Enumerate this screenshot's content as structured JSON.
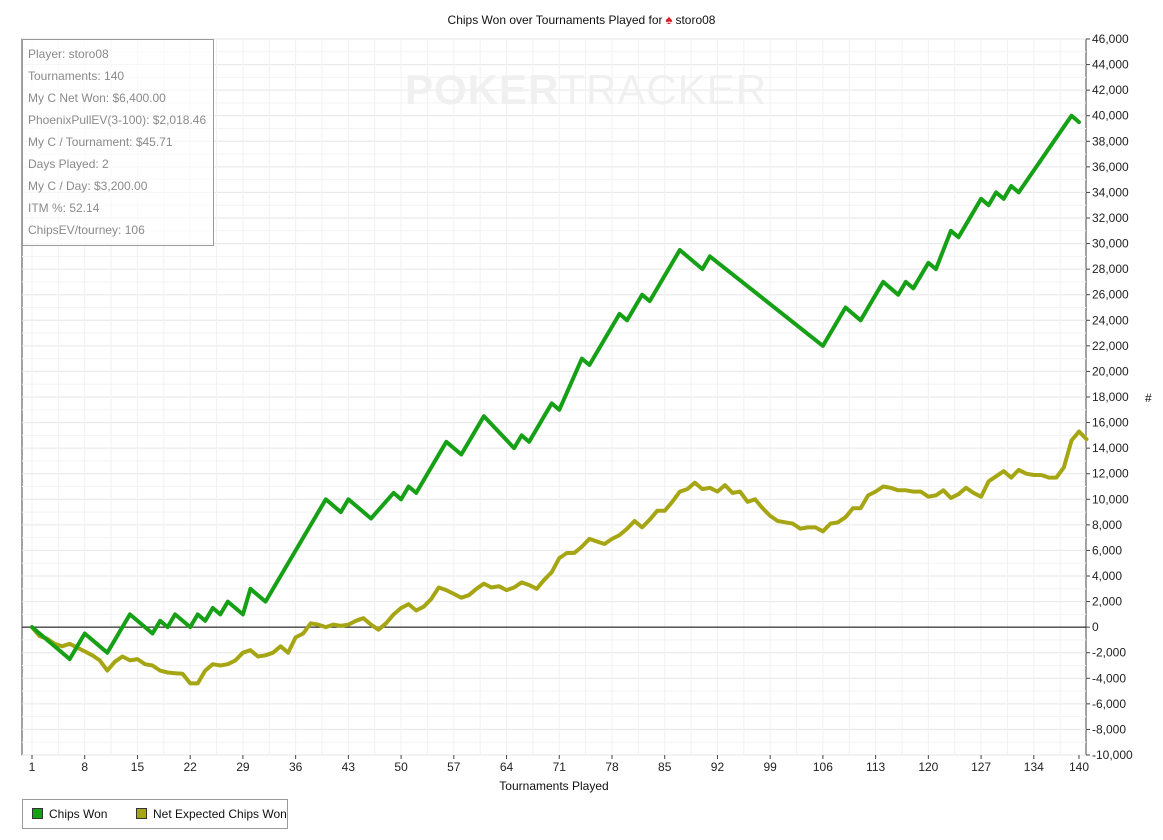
{
  "title": {
    "prefix": "Chips Won over Tournaments Played for",
    "suit_icon": "spade-icon",
    "player": "storo08"
  },
  "watermark": {
    "bold": "POKER",
    "thin": "TRACKER"
  },
  "stats": [
    "Player: storo08",
    "Tournaments: 140",
    "My C Net Won: $6,400.00",
    "PhoenixPullEV(3-100): $2,018.46",
    "My C / Tournament: $45.71",
    "Days Played: 2",
    "My C / Day: $3,200.00",
    "ITM %: 52.14",
    "ChipsEV/tourney: 106"
  ],
  "chart_data": {
    "type": "line",
    "title": "Chips Won over Tournaments Played for storo08",
    "xlabel": "Tournaments Played",
    "ylabel": "#",
    "xlim": [
      1,
      140
    ],
    "ylim": [
      -10000,
      46000
    ],
    "x_ticks": [
      1,
      8,
      15,
      22,
      29,
      36,
      43,
      50,
      57,
      64,
      71,
      78,
      85,
      92,
      99,
      106,
      113,
      120,
      127,
      134,
      140
    ],
    "y_ticks": [
      -10000,
      -8000,
      -6000,
      -4000,
      -2000,
      0,
      2000,
      4000,
      6000,
      8000,
      10000,
      12000,
      14000,
      16000,
      18000,
      20000,
      22000,
      24000,
      26000,
      28000,
      30000,
      32000,
      34000,
      36000,
      38000,
      40000,
      42000,
      44000,
      46000
    ],
    "y_tick_labels": [
      "-10,000",
      "-8,000",
      "-6,000",
      "-4,000",
      "-2,000",
      "0",
      "2,000",
      "4,000",
      "6,000",
      "8,000",
      "10,000",
      "12,000",
      "14,000",
      "16,000",
      "18,000",
      "20,000",
      "22,000",
      "24,000",
      "26,000",
      "28,000",
      "30,000",
      "32,000",
      "34,000",
      "36,000",
      "38,000",
      "40,000",
      "42,000",
      "44,000",
      "46,000"
    ],
    "grid": true,
    "legend_position": "bottom-left",
    "series": [
      {
        "name": "Chips Won",
        "color": "#16a016",
        "points": [
          [
            1,
            0
          ],
          [
            6,
            -2500
          ],
          [
            8,
            -500
          ],
          [
            11,
            -2000
          ],
          [
            14,
            1000
          ],
          [
            17,
            -500
          ],
          [
            18,
            500
          ],
          [
            19,
            0
          ],
          [
            20,
            1000
          ],
          [
            22,
            0
          ],
          [
            23,
            1000
          ],
          [
            24,
            500
          ],
          [
            25,
            1500
          ],
          [
            26,
            1000
          ],
          [
            27,
            2000
          ],
          [
            29,
            1000
          ],
          [
            30,
            3000
          ],
          [
            32,
            2000
          ],
          [
            40,
            10000
          ],
          [
            42,
            9000
          ],
          [
            43,
            10000
          ],
          [
            46,
            8500
          ],
          [
            49,
            10500
          ],
          [
            50,
            10000
          ],
          [
            51,
            11000
          ],
          [
            52,
            10500
          ],
          [
            56,
            14500
          ],
          [
            58,
            13500
          ],
          [
            61,
            16500
          ],
          [
            65,
            14000
          ],
          [
            66,
            15000
          ],
          [
            67,
            14500
          ],
          [
            70,
            17500
          ],
          [
            71,
            17000
          ],
          [
            74,
            21000
          ],
          [
            75,
            20500
          ],
          [
            79,
            24500
          ],
          [
            80,
            24000
          ],
          [
            82,
            26000
          ],
          [
            83,
            25500
          ],
          [
            87,
            29500
          ],
          [
            90,
            28000
          ],
          [
            91,
            29000
          ],
          [
            106,
            22000
          ],
          [
            109,
            25000
          ],
          [
            111,
            24000
          ],
          [
            114,
            27000
          ],
          [
            116,
            26000
          ],
          [
            117,
            27000
          ],
          [
            118,
            26500
          ],
          [
            120,
            28500
          ],
          [
            121,
            28000
          ],
          [
            123,
            31000
          ],
          [
            124,
            30500
          ],
          [
            127,
            33500
          ],
          [
            128,
            33000
          ],
          [
            129,
            34000
          ],
          [
            130,
            33500
          ],
          [
            131,
            34500
          ],
          [
            132,
            34000
          ],
          [
            139,
            40000
          ],
          [
            140,
            39500
          ]
        ]
      },
      {
        "name": "Net Expected Chips Won",
        "color": "#a6a614",
        "points": [
          [
            1,
            0
          ],
          [
            2,
            -700
          ],
          [
            3,
            -900
          ],
          [
            4,
            -1300
          ],
          [
            5,
            -1500
          ],
          [
            6,
            -1300
          ],
          [
            7,
            -1600
          ],
          [
            8,
            -1900
          ],
          [
            9,
            -2200
          ],
          [
            10,
            -2600
          ],
          [
            11,
            -3400
          ],
          [
            12,
            -2700
          ],
          [
            13,
            -2300
          ],
          [
            14,
            -2600
          ],
          [
            15,
            -2500
          ],
          [
            16,
            -2900
          ],
          [
            17,
            -3000
          ],
          [
            18,
            -3400
          ],
          [
            19,
            -3550
          ],
          [
            20,
            -3600
          ],
          [
            21,
            -3650
          ],
          [
            22,
            -4400
          ],
          [
            23,
            -4400
          ],
          [
            24,
            -3400
          ],
          [
            25,
            -2900
          ],
          [
            26,
            -3000
          ],
          [
            27,
            -2900
          ],
          [
            28,
            -2600
          ],
          [
            29,
            -2000
          ],
          [
            30,
            -1800
          ],
          [
            31,
            -2300
          ],
          [
            32,
            -2200
          ],
          [
            33,
            -2000
          ],
          [
            34,
            -1500
          ],
          [
            35,
            -2000
          ],
          [
            36,
            -800
          ],
          [
            37,
            -500
          ],
          [
            38,
            300
          ],
          [
            39,
            200
          ],
          [
            40,
            0
          ],
          [
            41,
            200
          ],
          [
            42,
            100
          ],
          [
            43,
            200
          ],
          [
            44,
            500
          ],
          [
            45,
            700
          ],
          [
            46,
            200
          ],
          [
            47,
            -200
          ],
          [
            48,
            300
          ],
          [
            49,
            1000
          ],
          [
            50,
            1500
          ],
          [
            51,
            1800
          ],
          [
            52,
            1300
          ],
          [
            53,
            1600
          ],
          [
            54,
            2200
          ],
          [
            55,
            3100
          ],
          [
            56,
            2900
          ],
          [
            57,
            2600
          ],
          [
            58,
            2300
          ],
          [
            59,
            2500
          ],
          [
            60,
            3000
          ],
          [
            61,
            3400
          ],
          [
            62,
            3100
          ],
          [
            63,
            3200
          ],
          [
            64,
            2900
          ],
          [
            65,
            3100
          ],
          [
            66,
            3500
          ],
          [
            67,
            3300
          ],
          [
            68,
            3000
          ],
          [
            69,
            3700
          ],
          [
            70,
            4300
          ],
          [
            71,
            5400
          ],
          [
            72,
            5800
          ],
          [
            73,
            5800
          ],
          [
            74,
            6300
          ],
          [
            75,
            6900
          ],
          [
            76,
            6700
          ],
          [
            77,
            6500
          ],
          [
            78,
            6900
          ],
          [
            79,
            7200
          ],
          [
            80,
            7700
          ],
          [
            81,
            8300
          ],
          [
            82,
            7800
          ],
          [
            83,
            8400
          ],
          [
            84,
            9100
          ],
          [
            85,
            9100
          ],
          [
            86,
            9800
          ],
          [
            87,
            10600
          ],
          [
            88,
            10800
          ],
          [
            89,
            11300
          ],
          [
            90,
            10800
          ],
          [
            91,
            10900
          ],
          [
            92,
            10600
          ],
          [
            93,
            11100
          ],
          [
            94,
            10500
          ],
          [
            95,
            10600
          ],
          [
            96,
            9800
          ],
          [
            97,
            10000
          ],
          [
            98,
            9300
          ],
          [
            99,
            8700
          ],
          [
            100,
            8300
          ],
          [
            101,
            8200
          ],
          [
            102,
            8100
          ],
          [
            103,
            7700
          ],
          [
            104,
            7800
          ],
          [
            105,
            7800
          ],
          [
            106,
            7500
          ],
          [
            107,
            8100
          ],
          [
            108,
            8200
          ],
          [
            109,
            8600
          ],
          [
            110,
            9300
          ],
          [
            111,
            9300
          ],
          [
            112,
            10300
          ],
          [
            113,
            10600
          ],
          [
            114,
            11000
          ],
          [
            115,
            10900
          ],
          [
            116,
            10700
          ],
          [
            117,
            10700
          ],
          [
            118,
            10600
          ],
          [
            119,
            10600
          ],
          [
            120,
            10200
          ],
          [
            121,
            10300
          ],
          [
            122,
            10700
          ],
          [
            123,
            10100
          ],
          [
            124,
            10400
          ],
          [
            125,
            10900
          ],
          [
            126,
            10500
          ],
          [
            127,
            10200
          ],
          [
            128,
            11400
          ],
          [
            129,
            11800
          ],
          [
            130,
            12200
          ],
          [
            131,
            11700
          ],
          [
            132,
            12300
          ],
          [
            133,
            12000
          ],
          [
            134,
            11900
          ],
          [
            135,
            11900
          ],
          [
            136,
            11700
          ],
          [
            137,
            11700
          ],
          [
            138,
            12500
          ],
          [
            139,
            14600
          ],
          [
            140,
            15300
          ],
          [
            141,
            14700
          ]
        ]
      }
    ]
  }
}
